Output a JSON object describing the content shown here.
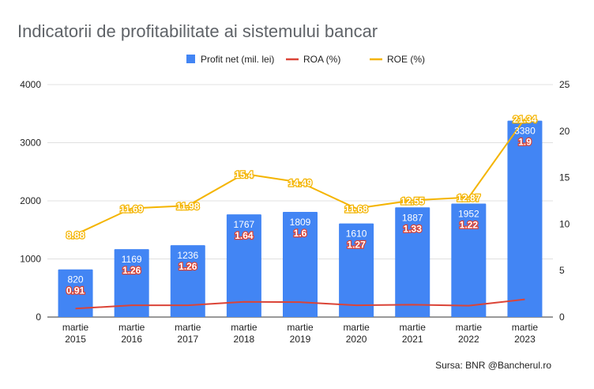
{
  "title": "Indicatorii de profitabilitate ai sistemului bancar",
  "source": "Sursa: BNR @Bancherul.ro",
  "colors": {
    "profit": "#4285f4",
    "roa": "#db4437",
    "roe": "#f4b400",
    "grid": "#e0e0e0"
  },
  "chart_data": {
    "type": "bar",
    "title": "Indicatorii de profitabilitate ai sistemului bancar",
    "categories": [
      [
        "martie",
        "2015"
      ],
      [
        "martie",
        "2016"
      ],
      [
        "martie",
        "2017"
      ],
      [
        "martie",
        "2018"
      ],
      [
        "martie",
        "2019"
      ],
      [
        "martie",
        "2020"
      ],
      [
        "martie",
        "2021"
      ],
      [
        "martie",
        "2022"
      ],
      [
        "martie",
        "2023"
      ]
    ],
    "y_left": {
      "ylim": [
        0,
        4000
      ],
      "ticks": [
        0,
        1000,
        2000,
        3000,
        4000
      ]
    },
    "y_right": {
      "ylim": [
        0,
        25
      ],
      "ticks": [
        0,
        5,
        10,
        15,
        20,
        25
      ]
    },
    "legend_position": "top",
    "grid": true,
    "series": [
      {
        "name": "Profit net (mil. lei)",
        "type": "bar",
        "axis": "left",
        "values": [
          820,
          1169,
          1236,
          1767,
          1809,
          1610,
          1887,
          1952,
          3380
        ],
        "labels": [
          "820",
          "1169",
          "1236",
          "1767",
          "1809",
          "1610",
          "1887",
          "1952",
          "3380"
        ]
      },
      {
        "name": "ROA (%)",
        "type": "line",
        "axis": "right",
        "values": [
          0.91,
          1.26,
          1.26,
          1.64,
          1.6,
          1.27,
          1.33,
          1.22,
          1.9
        ],
        "labels": [
          "0.91",
          "1.26",
          "1.26",
          "1.64",
          "1.6",
          "1.27",
          "1.33",
          "1.22",
          "1.9"
        ]
      },
      {
        "name": "ROE (%)",
        "type": "line",
        "axis": "right",
        "values": [
          8.88,
          11.69,
          11.98,
          15.4,
          14.49,
          11.68,
          12.55,
          12.87,
          21.34
        ],
        "labels": [
          "8.88",
          "11.69",
          "11.98",
          "15.4",
          "14.49",
          "11.68",
          "12.55",
          "12.87",
          "21.34"
        ]
      }
    ]
  }
}
